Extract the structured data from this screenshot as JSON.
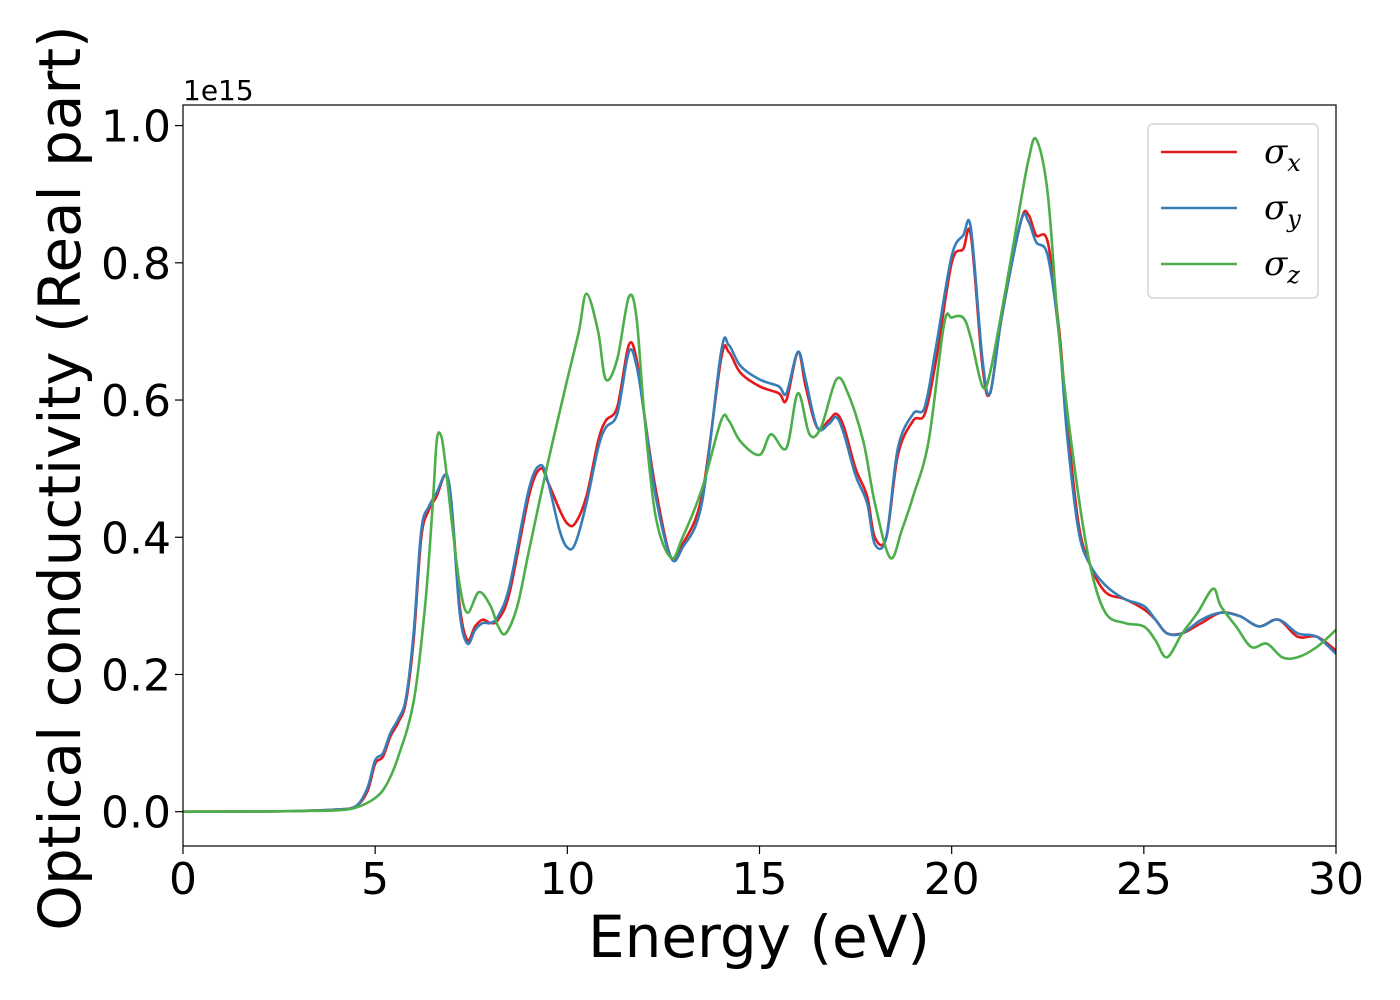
{
  "chart_data": {
    "type": "line",
    "xlabel": "Energy (eV)",
    "ylabel": "Optical conductivity (Real part)",
    "y_offset_label": "1e15",
    "xlim": [
      0,
      30
    ],
    "ylim": [
      -0.05,
      1.03
    ],
    "xticks": [
      0,
      5,
      10,
      15,
      20,
      25,
      30
    ],
    "xtick_labels": [
      "0",
      "5",
      "10",
      "15",
      "20",
      "25",
      "30"
    ],
    "yticks": [
      0.0,
      0.2,
      0.4,
      0.6,
      0.8,
      1.0
    ],
    "ytick_labels": [
      "0.0",
      "0.2",
      "0.4",
      "0.6",
      "0.8",
      "1.0"
    ],
    "grid": false,
    "legend_position": "top-right",
    "series": [
      {
        "name": "σx",
        "symbol": "σ",
        "subscript": "x",
        "color": "#e41a1c",
        "x": [
          0,
          2,
          3,
          4,
          4.5,
          4.8,
          5.0,
          5.2,
          5.4,
          5.6,
          5.8,
          6.0,
          6.2,
          6.4,
          6.6,
          6.8,
          6.9,
          7.0,
          7.2,
          7.4,
          7.6,
          7.8,
          8.0,
          8.2,
          8.5,
          9.0,
          9.3,
          9.5,
          9.8,
          10.0,
          10.2,
          10.5,
          10.8,
          11.0,
          11.3,
          11.6,
          11.8,
          12.0,
          12.3,
          12.7,
          13.0,
          13.5,
          14.0,
          14.2,
          14.5,
          15.0,
          15.5,
          15.7,
          16.0,
          16.2,
          16.5,
          16.8,
          17.0,
          17.2,
          17.5,
          17.8,
          18.0,
          18.3,
          18.6,
          19.0,
          19.3,
          19.6,
          20.0,
          20.3,
          20.5,
          20.8,
          21.0,
          21.3,
          21.8,
          22.0,
          22.2,
          22.5,
          22.8,
          23.0,
          23.3,
          23.6,
          24.0,
          24.5,
          25.0,
          25.3,
          25.6,
          26.0,
          26.5,
          27.0,
          27.5,
          28.0,
          28.5,
          29.0,
          29.5,
          30.0
        ],
        "y": [
          0,
          0.0005,
          0.001,
          0.003,
          0.008,
          0.03,
          0.07,
          0.08,
          0.11,
          0.13,
          0.16,
          0.25,
          0.4,
          0.44,
          0.46,
          0.49,
          0.48,
          0.44,
          0.3,
          0.25,
          0.27,
          0.28,
          0.275,
          0.28,
          0.32,
          0.46,
          0.5,
          0.48,
          0.44,
          0.42,
          0.42,
          0.46,
          0.54,
          0.57,
          0.59,
          0.68,
          0.66,
          0.58,
          0.47,
          0.37,
          0.39,
          0.46,
          0.66,
          0.67,
          0.64,
          0.62,
          0.61,
          0.6,
          0.67,
          0.62,
          0.56,
          0.57,
          0.58,
          0.56,
          0.5,
          0.46,
          0.4,
          0.4,
          0.52,
          0.57,
          0.58,
          0.66,
          0.8,
          0.82,
          0.84,
          0.65,
          0.61,
          0.72,
          0.86,
          0.87,
          0.84,
          0.83,
          0.7,
          0.57,
          0.42,
          0.36,
          0.32,
          0.31,
          0.295,
          0.28,
          0.26,
          0.26,
          0.275,
          0.29,
          0.285,
          0.27,
          0.28,
          0.255,
          0.255,
          0.235
        ]
      },
      {
        "name": "σy",
        "symbol": "σ",
        "subscript": "y",
        "color": "#377eb8",
        "x": [
          0,
          2,
          3,
          4,
          4.5,
          4.8,
          5.0,
          5.2,
          5.4,
          5.6,
          5.8,
          6.0,
          6.2,
          6.4,
          6.6,
          6.8,
          6.9,
          7.0,
          7.2,
          7.4,
          7.6,
          7.8,
          8.0,
          8.2,
          8.5,
          9.0,
          9.3,
          9.5,
          9.8,
          10.0,
          10.2,
          10.5,
          10.8,
          11.0,
          11.3,
          11.6,
          11.8,
          12.0,
          12.3,
          12.7,
          13.0,
          13.5,
          14.0,
          14.2,
          14.5,
          15.0,
          15.5,
          15.7,
          16.0,
          16.2,
          16.5,
          16.8,
          17.0,
          17.2,
          17.5,
          17.8,
          18.0,
          18.3,
          18.6,
          19.0,
          19.3,
          19.6,
          20.0,
          20.3,
          20.5,
          20.8,
          21.0,
          21.3,
          21.8,
          22.0,
          22.2,
          22.5,
          22.8,
          23.0,
          23.3,
          23.6,
          24.0,
          24.5,
          25.0,
          25.3,
          25.6,
          26.0,
          26.5,
          27.0,
          27.5,
          28.0,
          28.5,
          29.0,
          29.5,
          30.0
        ],
        "y": [
          0,
          0.0005,
          0.001,
          0.003,
          0.008,
          0.035,
          0.075,
          0.085,
          0.115,
          0.135,
          0.165,
          0.26,
          0.41,
          0.445,
          0.465,
          0.49,
          0.485,
          0.44,
          0.29,
          0.245,
          0.265,
          0.275,
          0.275,
          0.285,
          0.33,
          0.47,
          0.505,
          0.48,
          0.41,
          0.385,
          0.39,
          0.45,
          0.53,
          0.56,
          0.58,
          0.67,
          0.65,
          0.58,
          0.46,
          0.37,
          0.385,
          0.45,
          0.67,
          0.68,
          0.65,
          0.63,
          0.62,
          0.61,
          0.67,
          0.63,
          0.56,
          0.565,
          0.575,
          0.55,
          0.49,
          0.45,
          0.39,
          0.4,
          0.53,
          0.58,
          0.59,
          0.68,
          0.81,
          0.84,
          0.85,
          0.66,
          0.61,
          0.72,
          0.86,
          0.86,
          0.83,
          0.81,
          0.69,
          0.55,
          0.41,
          0.36,
          0.33,
          0.31,
          0.3,
          0.28,
          0.26,
          0.26,
          0.28,
          0.29,
          0.285,
          0.27,
          0.28,
          0.26,
          0.255,
          0.23
        ]
      },
      {
        "name": "σz",
        "symbol": "σ",
        "subscript": "z",
        "color": "#4daf4a",
        "x": [
          0,
          2,
          3,
          4,
          4.5,
          5.0,
          5.3,
          5.6,
          6.0,
          6.3,
          6.5,
          6.6,
          6.7,
          6.8,
          7.0,
          7.2,
          7.4,
          7.7,
          8.0,
          8.2,
          8.4,
          8.7,
          9.0,
          9.5,
          10.0,
          10.3,
          10.5,
          10.8,
          11.0,
          11.3,
          11.6,
          11.8,
          12.0,
          12.3,
          12.7,
          13.0,
          13.5,
          14.0,
          14.2,
          14.5,
          15.0,
          15.3,
          15.7,
          16.0,
          16.3,
          16.6,
          17.0,
          17.3,
          17.7,
          18.0,
          18.4,
          18.7,
          19.0,
          19.4,
          19.8,
          20.0,
          20.3,
          20.5,
          20.8,
          21.0,
          21.4,
          21.8,
          22.0,
          22.2,
          22.5,
          22.8,
          23.2,
          23.6,
          24.0,
          24.5,
          25.0,
          25.3,
          25.6,
          26.0,
          26.4,
          26.8,
          27.0,
          27.4,
          27.8,
          28.2,
          28.6,
          29.0,
          29.5,
          30.0
        ],
        "y": [
          0,
          0.0005,
          0.001,
          0.002,
          0.006,
          0.02,
          0.04,
          0.08,
          0.16,
          0.3,
          0.45,
          0.54,
          0.55,
          0.52,
          0.42,
          0.33,
          0.29,
          0.32,
          0.3,
          0.27,
          0.26,
          0.3,
          0.38,
          0.51,
          0.63,
          0.7,
          0.755,
          0.7,
          0.63,
          0.66,
          0.75,
          0.72,
          0.58,
          0.43,
          0.37,
          0.4,
          0.47,
          0.57,
          0.57,
          0.54,
          0.52,
          0.55,
          0.53,
          0.61,
          0.55,
          0.56,
          0.63,
          0.61,
          0.54,
          0.45,
          0.37,
          0.41,
          0.46,
          0.54,
          0.71,
          0.72,
          0.72,
          0.69,
          0.62,
          0.64,
          0.76,
          0.89,
          0.95,
          0.98,
          0.9,
          0.69,
          0.5,
          0.36,
          0.29,
          0.275,
          0.27,
          0.25,
          0.225,
          0.26,
          0.29,
          0.325,
          0.3,
          0.27,
          0.24,
          0.245,
          0.225,
          0.225,
          0.24,
          0.265
        ]
      }
    ]
  }
}
